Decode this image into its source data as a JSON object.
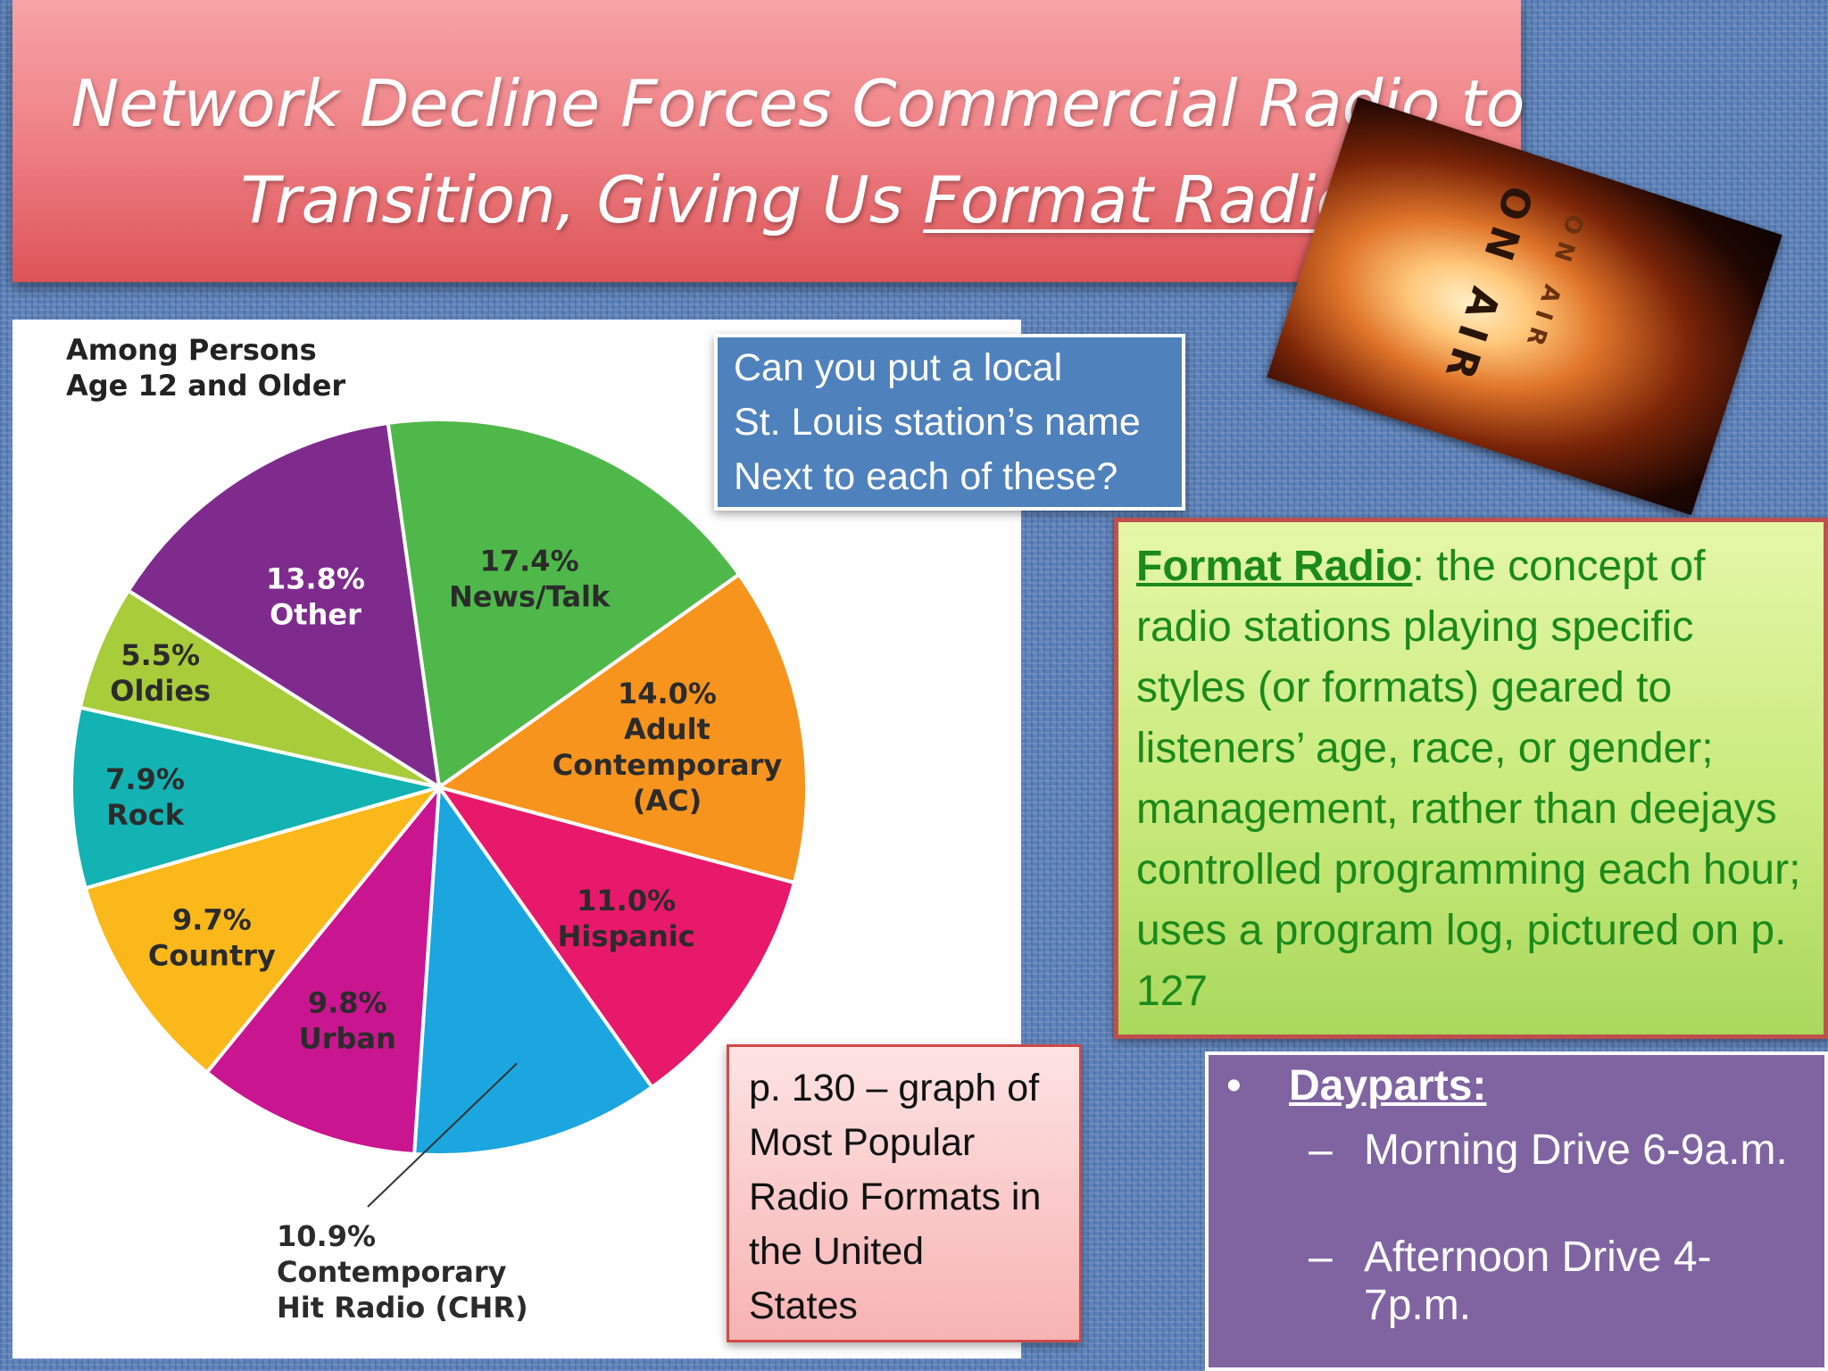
{
  "title": {
    "line1": "Network Decline Forces Commercial Radio to",
    "line2_prefix": "Transition, Giving Us ",
    "line2_underlined": "Format Radio"
  },
  "photo": {
    "sign_text": "ON AIR"
  },
  "question_box": {
    "lines": [
      "Can you put a local",
      "St. Louis station’s name",
      "Next to each of these?"
    ]
  },
  "format_box": {
    "term": "Format Radio",
    "definition": ": the concept of radio stations playing specific styles (or formats) geared to listeners’ age, race, or gender; management, rather than deejays controlled programming each hour; uses a program log, pictured on p. 127"
  },
  "page_box": {
    "lines": [
      "p. 130 – graph of",
      "Most Popular",
      "Radio Formats in",
      "the United",
      "States"
    ]
  },
  "dayparts": {
    "bullet": "•",
    "heading": "Dayparts:",
    "items": [
      {
        "dash": "–",
        "text": "Morning Drive 6-9a.m."
      },
      {
        "dash": "–",
        "text": "Afternoon Drive 4-7p.m."
      }
    ]
  },
  "chart_data": {
    "type": "pie",
    "title": "Among Persons\nAge 12 and Older",
    "slices": [
      {
        "label": "News/Talk",
        "value": 17.4,
        "display": "17.4%",
        "color": "#4fb84a"
      },
      {
        "label": "Adult Contemporary (AC)",
        "value": 14.0,
        "display": "14.0%",
        "color": "#f7941d"
      },
      {
        "label": "Hispanic",
        "value": 11.0,
        "display": "11.0%",
        "color": "#e8186a"
      },
      {
        "label": "Contemporary Hit Radio (CHR)",
        "value": 10.9,
        "display": "10.9%",
        "color": "#1ba6e0"
      },
      {
        "label": "Urban",
        "value": 9.8,
        "display": "9.8%",
        "color": "#c9158f"
      },
      {
        "label": "Country",
        "value": 9.7,
        "display": "9.7%",
        "color": "#fbb81b"
      },
      {
        "label": "Rock",
        "value": 7.9,
        "display": "7.9%",
        "color": "#13b2b3"
      },
      {
        "label": "Oldies",
        "value": 5.5,
        "display": "5.5%",
        "color": "#a8cc3a"
      },
      {
        "label": "Other",
        "value": 13.8,
        "display": "13.8%",
        "color": "#7f2b8e"
      }
    ]
  }
}
